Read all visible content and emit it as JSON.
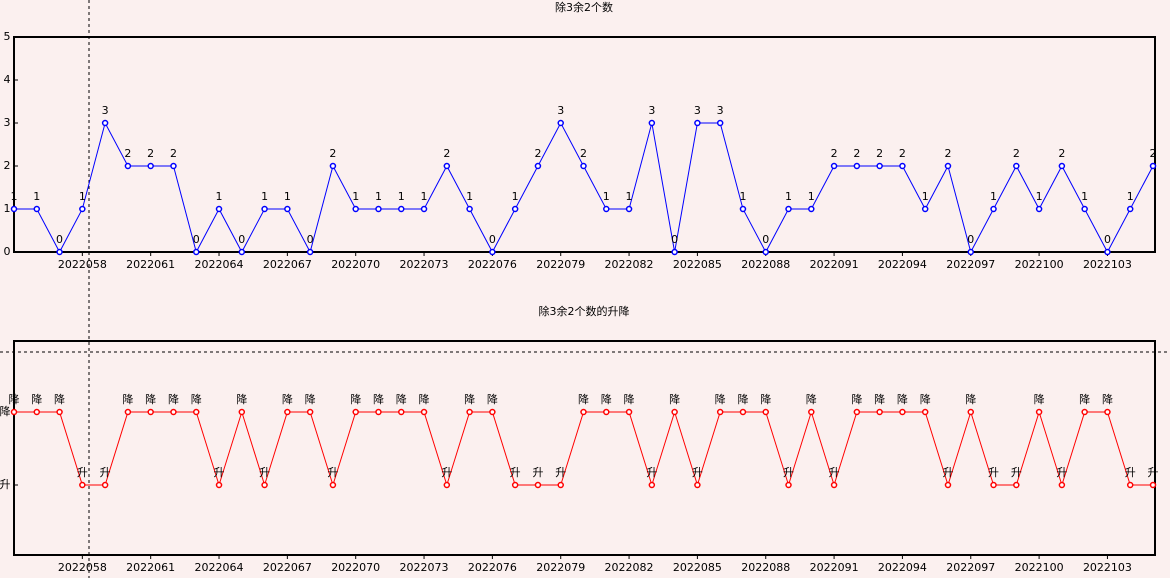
{
  "chart_data": [
    {
      "type": "line",
      "title": "除3余2个数",
      "categories": [
        null,
        null,
        null,
        "2022058",
        null,
        null,
        "2022061",
        null,
        null,
        "2022064",
        null,
        null,
        "2022067",
        null,
        null,
        "2022070",
        null,
        null,
        "2022073",
        null,
        null,
        "2022076",
        null,
        null,
        "2022079",
        null,
        null,
        "2022082",
        null,
        null,
        "2022085",
        null,
        null,
        "2022088",
        null,
        null,
        "2022091",
        null,
        null,
        "2022094",
        null,
        null,
        "2022097",
        null,
        null,
        "2022100",
        null,
        null,
        "2022103",
        null,
        null
      ],
      "series": [
        {
          "color": "#0000ff",
          "values": [
            1,
            1,
            0,
            1,
            3,
            2,
            2,
            2,
            0,
            1,
            0,
            1,
            1,
            0,
            2,
            1,
            1,
            1,
            1,
            2,
            1,
            0,
            1,
            2,
            3,
            2,
            1,
            1,
            3,
            0,
            3,
            3,
            1,
            0,
            1,
            1,
            2,
            2,
            2,
            2,
            1,
            2,
            0,
            1,
            2,
            1,
            2,
            1,
            0,
            1,
            2
          ]
        }
      ],
      "ylim": [
        0,
        5
      ],
      "yticks": [
        0,
        1,
        2,
        3,
        4,
        5
      ]
    },
    {
      "type": "level",
      "title": "除3余2个数的升降",
      "categories": [
        null,
        null,
        null,
        "2022058",
        null,
        null,
        "2022061",
        null,
        null,
        "2022064",
        null,
        null,
        "2022067",
        null,
        null,
        "2022070",
        null,
        null,
        "2022073",
        null,
        null,
        "2022076",
        null,
        null,
        "2022079",
        null,
        null,
        "2022082",
        null,
        null,
        "2022085",
        null,
        null,
        "2022088",
        null,
        null,
        "2022091",
        null,
        null,
        "2022094",
        null,
        null,
        "2022097",
        null,
        null,
        "2022100",
        null,
        null,
        "2022103",
        null,
        null
      ],
      "series": [
        {
          "color": "#ff0000",
          "values": [
            "降",
            "降",
            "降",
            "升",
            "升",
            "降",
            "降",
            "降",
            "降",
            "升",
            "降",
            "升",
            "降",
            "降",
            "升",
            "降",
            "降",
            "降",
            "降",
            "升",
            "降",
            "降",
            "升",
            "升",
            "升",
            "降",
            "降",
            "降",
            "升",
            "降",
            "升",
            "降",
            "降",
            "降",
            "升",
            "降",
            "升",
            "降",
            "降",
            "降",
            "降",
            "升",
            "降",
            "升",
            "升",
            "降",
            "升",
            "降",
            "降",
            "升",
            "升"
          ]
        }
      ],
      "yticks": [
        "升",
        "降"
      ]
    }
  ]
}
